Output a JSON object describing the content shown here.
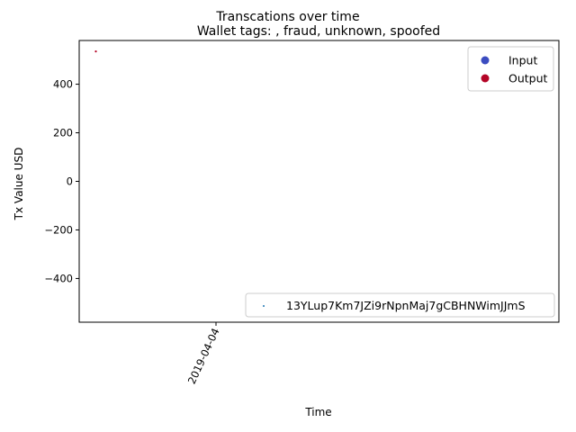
{
  "chart_data": {
    "type": "scatter",
    "suptitle": "Transcations over time",
    "title": "Wallet tags: , fraud, unknown, spoofed",
    "xlabel": "Time",
    "ylabel": "Tx Value USD",
    "x_tick_labels": [
      "2019-04-04"
    ],
    "y_ticks": [
      400,
      200,
      0,
      -200,
      -400
    ],
    "y_tick_labels": [
      "400",
      "200",
      "0",
      "−200",
      "−400"
    ],
    "ylim": [
      -580,
      580
    ],
    "grid": false,
    "series": [
      {
        "name": "13YLup7Km7JZi9rNpnMaj7gCBHNWimJJmS",
        "color": "#1f77b4",
        "points": []
      },
      {
        "name": "Output",
        "color": "#b40426",
        "points": [
          {
            "x": "2019-04-03",
            "y": 537
          }
        ]
      }
    ],
    "legends": [
      {
        "placement": "top-right",
        "entries": [
          {
            "label": "Input",
            "color": "#3b4cc0",
            "marker": "circle"
          },
          {
            "label": "Output",
            "color": "#b40426",
            "marker": "circle"
          }
        ]
      },
      {
        "placement": "bottom-right",
        "entries": [
          {
            "label": "13YLup7Km7JZi9rNpnMaj7gCBHNWimJJmS",
            "color": "#1f77b4",
            "marker": "point"
          }
        ]
      }
    ]
  }
}
